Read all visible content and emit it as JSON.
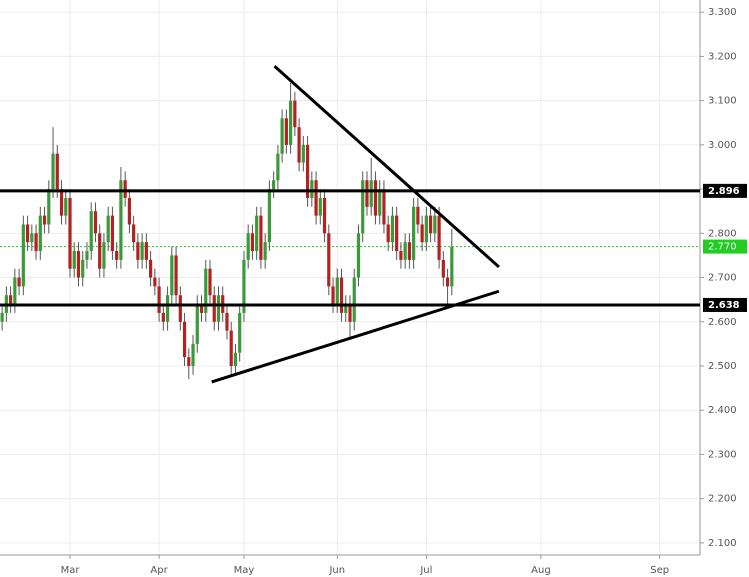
{
  "chart_data": {
    "type": "candlestick",
    "categories": [
      null,
      null,
      null,
      null,
      null,
      null,
      null,
      null,
      null,
      null,
      null,
      null,
      null,
      null,
      null,
      null,
      "Mar",
      null,
      null,
      null,
      null,
      null,
      null,
      null,
      null,
      null,
      null,
      null,
      null,
      null,
      null,
      null,
      null,
      null,
      null,
      null,
      null,
      "Apr",
      null,
      null,
      null,
      null,
      null,
      null,
      null,
      null,
      null,
      null,
      null,
      null,
      null,
      null,
      null,
      null,
      null,
      null,
      null,
      "May",
      null,
      null,
      null,
      null,
      null,
      null,
      null,
      null,
      null,
      null,
      null,
      null,
      null,
      null,
      null,
      null,
      null,
      null,
      null,
      null,
      null,
      "Jun",
      null,
      null,
      null,
      null,
      null,
      null,
      null,
      null,
      null,
      null,
      null,
      null,
      null,
      null,
      null,
      null,
      null,
      null,
      null,
      null,
      "Jul",
      null,
      null,
      null,
      null,
      null,
      null,
      null,
      null,
      null,
      null,
      null,
      null,
      null,
      null,
      null,
      null,
      null,
      null,
      null,
      null,
      null,
      null,
      null,
      null,
      null,
      null,
      "Aug",
      null,
      null,
      null,
      null,
      null,
      null,
      null,
      null,
      null,
      null,
      null,
      null,
      null,
      null,
      null,
      null,
      null,
      null,
      null,
      null,
      null,
      null,
      null,
      null,
      null,
      null,
      null,
      "Sep",
      null,
      null,
      null,
      null,
      null,
      null,
      null,
      null,
      null
    ],
    "open": [
      2.6,
      2.62,
      2.66,
      2.64,
      2.7,
      2.68,
      2.82,
      2.78,
      2.8,
      2.76,
      2.84,
      2.82,
      2.9,
      2.98,
      2.9,
      2.84,
      2.88,
      2.72,
      2.76,
      2.7,
      2.74,
      2.76,
      2.85,
      2.8,
      2.72,
      2.78,
      2.84,
      2.76,
      2.74,
      2.92,
      2.88,
      2.82,
      2.78,
      2.74,
      2.78,
      2.74,
      2.7,
      2.68,
      2.62,
      2.6,
      2.66,
      2.75,
      2.66,
      2.6,
      2.52,
      2.5,
      2.55,
      2.64,
      2.62,
      2.72,
      2.66,
      2.6,
      2.66,
      2.62,
      2.58,
      2.5,
      2.53,
      2.62,
      2.74,
      2.8,
      2.76,
      2.84,
      2.74,
      2.78,
      2.9,
      2.92,
      2.98,
      3.06,
      3.0,
      3.1,
      3.04,
      2.96,
      3.0,
      2.88,
      2.92,
      2.84,
      2.88,
      2.8,
      2.68,
      2.64,
      2.7,
      2.62,
      2.64,
      2.6,
      2.7,
      2.8,
      2.92,
      2.86,
      2.92,
      2.84,
      2.9,
      2.82,
      2.78,
      2.84,
      2.76,
      2.74,
      2.78,
      2.74,
      2.86,
      2.82,
      2.78,
      2.84,
      2.8,
      2.84,
      2.74,
      2.7,
      2.68,
      null,
      null,
      null,
      null,
      null,
      null,
      null,
      null,
      null,
      null,
      null,
      null,
      null,
      null,
      null,
      null,
      null,
      null,
      null,
      null,
      null,
      null,
      null,
      null,
      null,
      null,
      null,
      null,
      null,
      null,
      null,
      null,
      null,
      null,
      null,
      null,
      null,
      null,
      null,
      null,
      null,
      null,
      null,
      null,
      null,
      null,
      null,
      null,
      null,
      null,
      null,
      null,
      null,
      null,
      null,
      null,
      null,
      null
    ],
    "high": [
      2.64,
      2.68,
      2.68,
      2.72,
      2.72,
      2.84,
      2.84,
      2.82,
      2.82,
      2.86,
      2.86,
      2.92,
      3.04,
      3.0,
      2.92,
      2.9,
      2.9,
      2.78,
      2.78,
      2.76,
      2.78,
      2.87,
      2.87,
      2.82,
      2.8,
      2.86,
      2.86,
      2.78,
      2.95,
      2.94,
      2.9,
      2.84,
      2.8,
      2.8,
      2.8,
      2.76,
      2.72,
      2.7,
      2.64,
      2.68,
      2.77,
      2.77,
      2.68,
      2.62,
      2.54,
      2.57,
      2.66,
      2.66,
      2.74,
      2.74,
      2.68,
      2.68,
      2.68,
      2.64,
      2.6,
      2.55,
      2.64,
      2.76,
      2.82,
      2.82,
      2.86,
      2.86,
      2.8,
      2.92,
      2.94,
      3.0,
      3.08,
      3.08,
      3.14,
      3.12,
      3.06,
      3.02,
      3.02,
      2.94,
      2.94,
      2.9,
      2.9,
      2.82,
      2.7,
      2.72,
      2.72,
      2.66,
      2.66,
      2.72,
      2.82,
      2.94,
      2.94,
      2.97,
      2.94,
      2.92,
      2.92,
      2.84,
      2.86,
      2.86,
      2.78,
      2.8,
      2.8,
      2.88,
      2.88,
      2.84,
      2.86,
      2.86,
      2.86,
      2.86,
      2.76,
      2.72,
      2.81,
      null,
      null,
      null,
      null,
      null,
      null,
      null,
      null,
      null,
      null,
      null,
      null,
      null,
      null,
      null,
      null,
      null,
      null,
      null,
      null,
      null,
      null,
      null,
      null,
      null,
      null,
      null,
      null,
      null,
      null,
      null,
      null,
      null,
      null,
      null,
      null,
      null,
      null,
      null,
      null,
      null,
      null,
      null,
      null,
      null,
      null,
      null,
      null,
      null,
      null,
      null,
      null,
      null,
      null,
      null,
      null,
      null,
      null
    ],
    "low": [
      2.58,
      2.6,
      2.62,
      2.62,
      2.66,
      2.66,
      2.76,
      2.76,
      2.74,
      2.74,
      2.8,
      2.8,
      2.88,
      2.88,
      2.82,
      2.82,
      2.7,
      2.7,
      2.68,
      2.68,
      2.72,
      2.74,
      2.78,
      2.7,
      2.7,
      2.76,
      2.74,
      2.72,
      2.72,
      2.86,
      2.8,
      2.76,
      2.72,
      2.72,
      2.72,
      2.68,
      2.66,
      2.6,
      2.58,
      2.58,
      2.64,
      2.64,
      2.58,
      2.5,
      2.47,
      2.48,
      2.53,
      2.6,
      2.6,
      2.64,
      2.58,
      2.58,
      2.6,
      2.56,
      2.48,
      2.48,
      2.51,
      2.6,
      2.72,
      2.74,
      2.74,
      2.72,
      2.72,
      2.76,
      2.88,
      2.9,
      2.96,
      2.98,
      2.98,
      3.02,
      2.94,
      2.94,
      2.86,
      2.86,
      2.82,
      2.82,
      2.78,
      2.66,
      2.62,
      2.62,
      2.6,
      2.6,
      2.56,
      2.58,
      2.68,
      2.78,
      2.84,
      2.84,
      2.82,
      2.82,
      2.8,
      2.76,
      2.76,
      2.74,
      2.72,
      2.72,
      2.72,
      2.72,
      2.8,
      2.76,
      2.76,
      2.78,
      2.78,
      2.72,
      2.68,
      2.64,
      2.66,
      null,
      null,
      null,
      null,
      null,
      null,
      null,
      null,
      null,
      null,
      null,
      null,
      null,
      null,
      null,
      null,
      null,
      null,
      null,
      null,
      null,
      null,
      null,
      null,
      null,
      null,
      null,
      null,
      null,
      null,
      null,
      null,
      null,
      null,
      null,
      null,
      null,
      null,
      null,
      null,
      null,
      null,
      null,
      null,
      null,
      null,
      null,
      null,
      null,
      null,
      null,
      null,
      null,
      null,
      null,
      null,
      null,
      null
    ],
    "close": [
      2.62,
      2.66,
      2.64,
      2.7,
      2.68,
      2.82,
      2.78,
      2.8,
      2.76,
      2.84,
      2.82,
      2.9,
      2.98,
      2.9,
      2.84,
      2.88,
      2.72,
      2.76,
      2.7,
      2.74,
      2.76,
      2.85,
      2.8,
      2.72,
      2.78,
      2.84,
      2.76,
      2.74,
      2.92,
      2.88,
      2.82,
      2.78,
      2.74,
      2.78,
      2.74,
      2.7,
      2.68,
      2.62,
      2.6,
      2.66,
      2.75,
      2.66,
      2.6,
      2.52,
      2.5,
      2.55,
      2.64,
      2.62,
      2.72,
      2.66,
      2.6,
      2.66,
      2.62,
      2.58,
      2.5,
      2.53,
      2.62,
      2.74,
      2.8,
      2.76,
      2.84,
      2.74,
      2.78,
      2.9,
      2.92,
      2.98,
      3.06,
      3.0,
      3.1,
      3.04,
      2.96,
      3.0,
      2.88,
      2.92,
      2.84,
      2.88,
      2.8,
      2.68,
      2.64,
      2.7,
      2.62,
      2.64,
      2.6,
      2.7,
      2.8,
      2.92,
      2.86,
      2.92,
      2.84,
      2.9,
      2.82,
      2.78,
      2.84,
      2.76,
      2.74,
      2.78,
      2.74,
      2.86,
      2.82,
      2.78,
      2.84,
      2.8,
      2.84,
      2.74,
      2.7,
      2.68,
      2.77,
      null,
      null,
      null,
      null,
      null,
      null,
      null,
      null,
      null,
      null,
      null,
      null,
      null,
      null,
      null,
      null,
      null,
      null,
      null,
      null,
      null,
      null,
      null,
      null,
      null,
      null,
      null,
      null,
      null,
      null,
      null,
      null,
      null,
      null,
      null,
      null,
      null,
      null,
      null,
      null,
      null,
      null,
      null,
      null,
      null,
      null,
      null,
      null,
      null,
      null,
      null,
      null,
      null,
      null,
      null,
      null,
      null,
      null
    ],
    "up_color": "#3a9a3a",
    "down_color": "#b22222",
    "ylim": [
      2.0726,
      3.3276
    ],
    "yticks": [
      {
        "value": 2.1,
        "label": "2.100"
      },
      {
        "value": 2.2,
        "label": "2.200"
      },
      {
        "value": 2.3,
        "label": "2.300"
      },
      {
        "value": 2.4,
        "label": "2.400"
      },
      {
        "value": 2.5,
        "label": "2.500"
      },
      {
        "value": 2.6,
        "label": "2.600"
      },
      {
        "value": 2.7,
        "label": "2.700"
      },
      {
        "value": 2.8,
        "label": "2.800"
      },
      {
        "value": 2.9,
        "label": "2.900"
      },
      {
        "value": 3.0,
        "label": "3.000"
      },
      {
        "value": 3.1,
        "label": "3.100"
      },
      {
        "value": 3.2,
        "label": "3.200"
      },
      {
        "value": 3.3,
        "label": "3.300"
      }
    ],
    "grid": true,
    "levels": [
      2.896,
      2.638
    ],
    "last_price": {
      "value": 2.77,
      "label": "2.770"
    },
    "last_price_color": "#22cc22",
    "trendlines": [
      {
        "x": [
          64.2,
          117.1
        ],
        "y": [
          3.178,
          2.724
        ]
      },
      {
        "x": [
          49.4,
          117.1
        ],
        "y": [
          2.464,
          2.669
        ]
      }
    ]
  }
}
